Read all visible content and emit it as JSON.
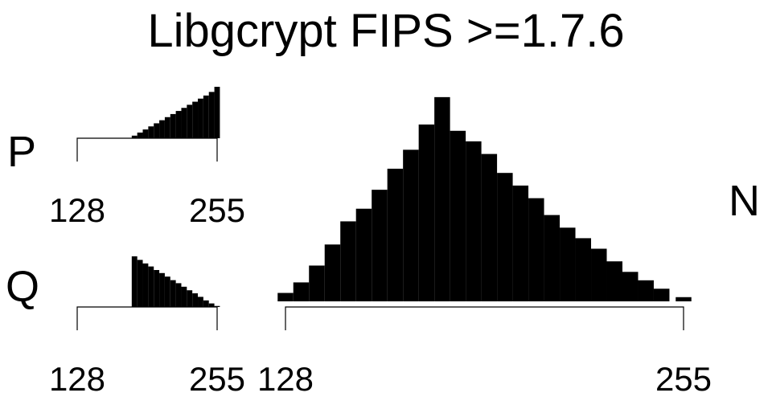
{
  "chart_data": {
    "title": "Libgcrypt FIPS >=1.7.6",
    "type": "bar",
    "color": "#000000",
    "panels": [
      {
        "id": "p",
        "label": "P",
        "xlim": [
          128,
          255
        ],
        "tick_labels": [
          "128",
          "255"
        ],
        "shape": "triangular histogram of prime P bit values; bars present from about 180 to 255, heights rising linearly",
        "x": [
          180,
          185,
          190,
          195,
          200,
          205,
          210,
          215,
          220,
          225,
          230,
          235,
          240,
          245,
          250,
          255
        ],
        "values": [
          0.05,
          0.11,
          0.17,
          0.23,
          0.29,
          0.35,
          0.41,
          0.47,
          0.53,
          0.59,
          0.65,
          0.71,
          0.77,
          0.83,
          0.9,
          1.0
        ]
      },
      {
        "id": "q",
        "label": "Q",
        "xlim": [
          128,
          255
        ],
        "tick_labels": [
          "128",
          "255"
        ],
        "shape": "triangular histogram of prime Q bit values; bars present from about 180 to 255, heights falling linearly",
        "x": [
          180,
          185,
          190,
          195,
          200,
          205,
          210,
          215,
          220,
          225,
          230,
          235,
          240,
          245,
          250,
          255
        ],
        "values": [
          1.0,
          0.93,
          0.86,
          0.8,
          0.73,
          0.67,
          0.6,
          0.53,
          0.47,
          0.4,
          0.33,
          0.27,
          0.2,
          0.13,
          0.07,
          0.02
        ]
      },
      {
        "id": "n",
        "label": "N",
        "xlim": [
          128,
          255
        ],
        "tick_labels": [
          "128",
          "255"
        ],
        "shape": "triangular histogram of modulus N bit values; peak near 178",
        "x": [
          128,
          133,
          138,
          143,
          148,
          153,
          158,
          163,
          168,
          173,
          178,
          183,
          188,
          193,
          198,
          203,
          208,
          213,
          218,
          223,
          228,
          233,
          238,
          243,
          248,
          255
        ],
        "values": [
          0.04,
          0.09,
          0.17,
          0.27,
          0.38,
          0.44,
          0.53,
          0.63,
          0.72,
          0.84,
          0.97,
          0.81,
          0.76,
          0.7,
          0.61,
          0.55,
          0.49,
          0.41,
          0.35,
          0.3,
          0.25,
          0.19,
          0.14,
          0.1,
          0.06,
          0.02
        ]
      }
    ]
  }
}
